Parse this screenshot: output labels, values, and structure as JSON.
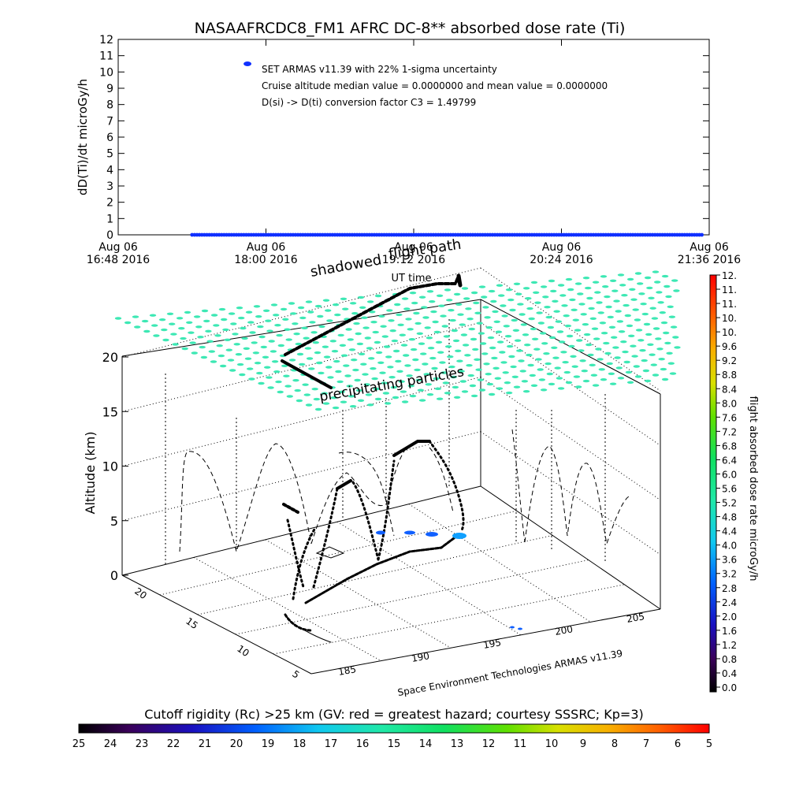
{
  "chart_data": [
    {
      "type": "scatter",
      "title": "NASAAFRCDC8_FM1 AFRC DC-8** absorbed dose rate (Ti)",
      "ylabel": "dD(Ti)/dt microGy/h",
      "xlabel": "UT time",
      "ylim": [
        0,
        12
      ],
      "yticks": [
        "0",
        "1",
        "2",
        "3",
        "4",
        "5",
        "6",
        "7",
        "8",
        "9",
        "10",
        "11",
        "12"
      ],
      "xticks": [
        {
          "top": "Aug 06",
          "bottom": "16:48 2016"
        },
        {
          "top": "Aug 06",
          "bottom": "18:00 2016"
        },
        {
          "top": "Aug 06",
          "bottom": "19:12 2016"
        },
        {
          "top": "Aug 06",
          "bottom": "20:24 2016"
        },
        {
          "top": "Aug 06",
          "bottom": "21:36 2016"
        }
      ],
      "xrange_hours": [
        16.8,
        21.6
      ],
      "series_color": "#1030ff",
      "series": [
        {
          "x_start": 17.4,
          "x_end": 21.55,
          "y": 0.0
        },
        {
          "x": 17.85,
          "y": 10.5
        }
      ],
      "annotations": [
        "SET ARMAS v11.39 with 22% 1-sigma uncertainty",
        "Cruise altitude median value = 0.0000000 and mean value = 0.0000000",
        "D(si) -> D(ti) conversion factor C3 = 1.49799"
      ]
    },
    {
      "type": "scatter",
      "zlabel": "Altitude (km)",
      "zticks": [
        "0",
        "5",
        "10",
        "15",
        "20"
      ],
      "lat_ticks": [
        "5",
        "10",
        "15",
        "20"
      ],
      "lon_ticks": [
        "185",
        "190",
        "195",
        "200",
        "205"
      ],
      "top_labels": {
        "path": "flight path",
        "shadowed": "shadowed",
        "precip": "precipitating particles"
      },
      "credit": "Space Environment Technologies ARMAS v11.39"
    }
  ],
  "colorbar_right": {
    "label": "flight absorbed dose rate microGy/h",
    "ticks": [
      "0.0",
      "0.4",
      "0.8",
      "1.2",
      "1.6",
      "2.0",
      "2.4",
      "2.8",
      "3.2",
      "3.6",
      "4.0",
      "4.4",
      "4.8",
      "5.2",
      "5.6",
      "6.0",
      "6.4",
      "6.8",
      "7.2",
      "7.6",
      "8.0",
      "8.4",
      "8.8",
      "9.2",
      "9.6",
      "10.",
      "10.",
      "11.",
      "11.",
      "12."
    ]
  },
  "colorbar_bottom": {
    "label": "Cutoff rigidity (Rc) >25 km (GV: red = greatest hazard; courtesy SSSRC; Kp=3)",
    "ticks": [
      "25",
      "24",
      "23",
      "22",
      "21",
      "20",
      "19",
      "18",
      "17",
      "16",
      "15",
      "14",
      "13",
      "12",
      "11",
      "10",
      "9",
      "8",
      "7",
      "6",
      "5"
    ]
  },
  "colors": {
    "grid_cyan": "#3de8b4",
    "track": "#000000",
    "dose_blue": "#1030ff"
  }
}
